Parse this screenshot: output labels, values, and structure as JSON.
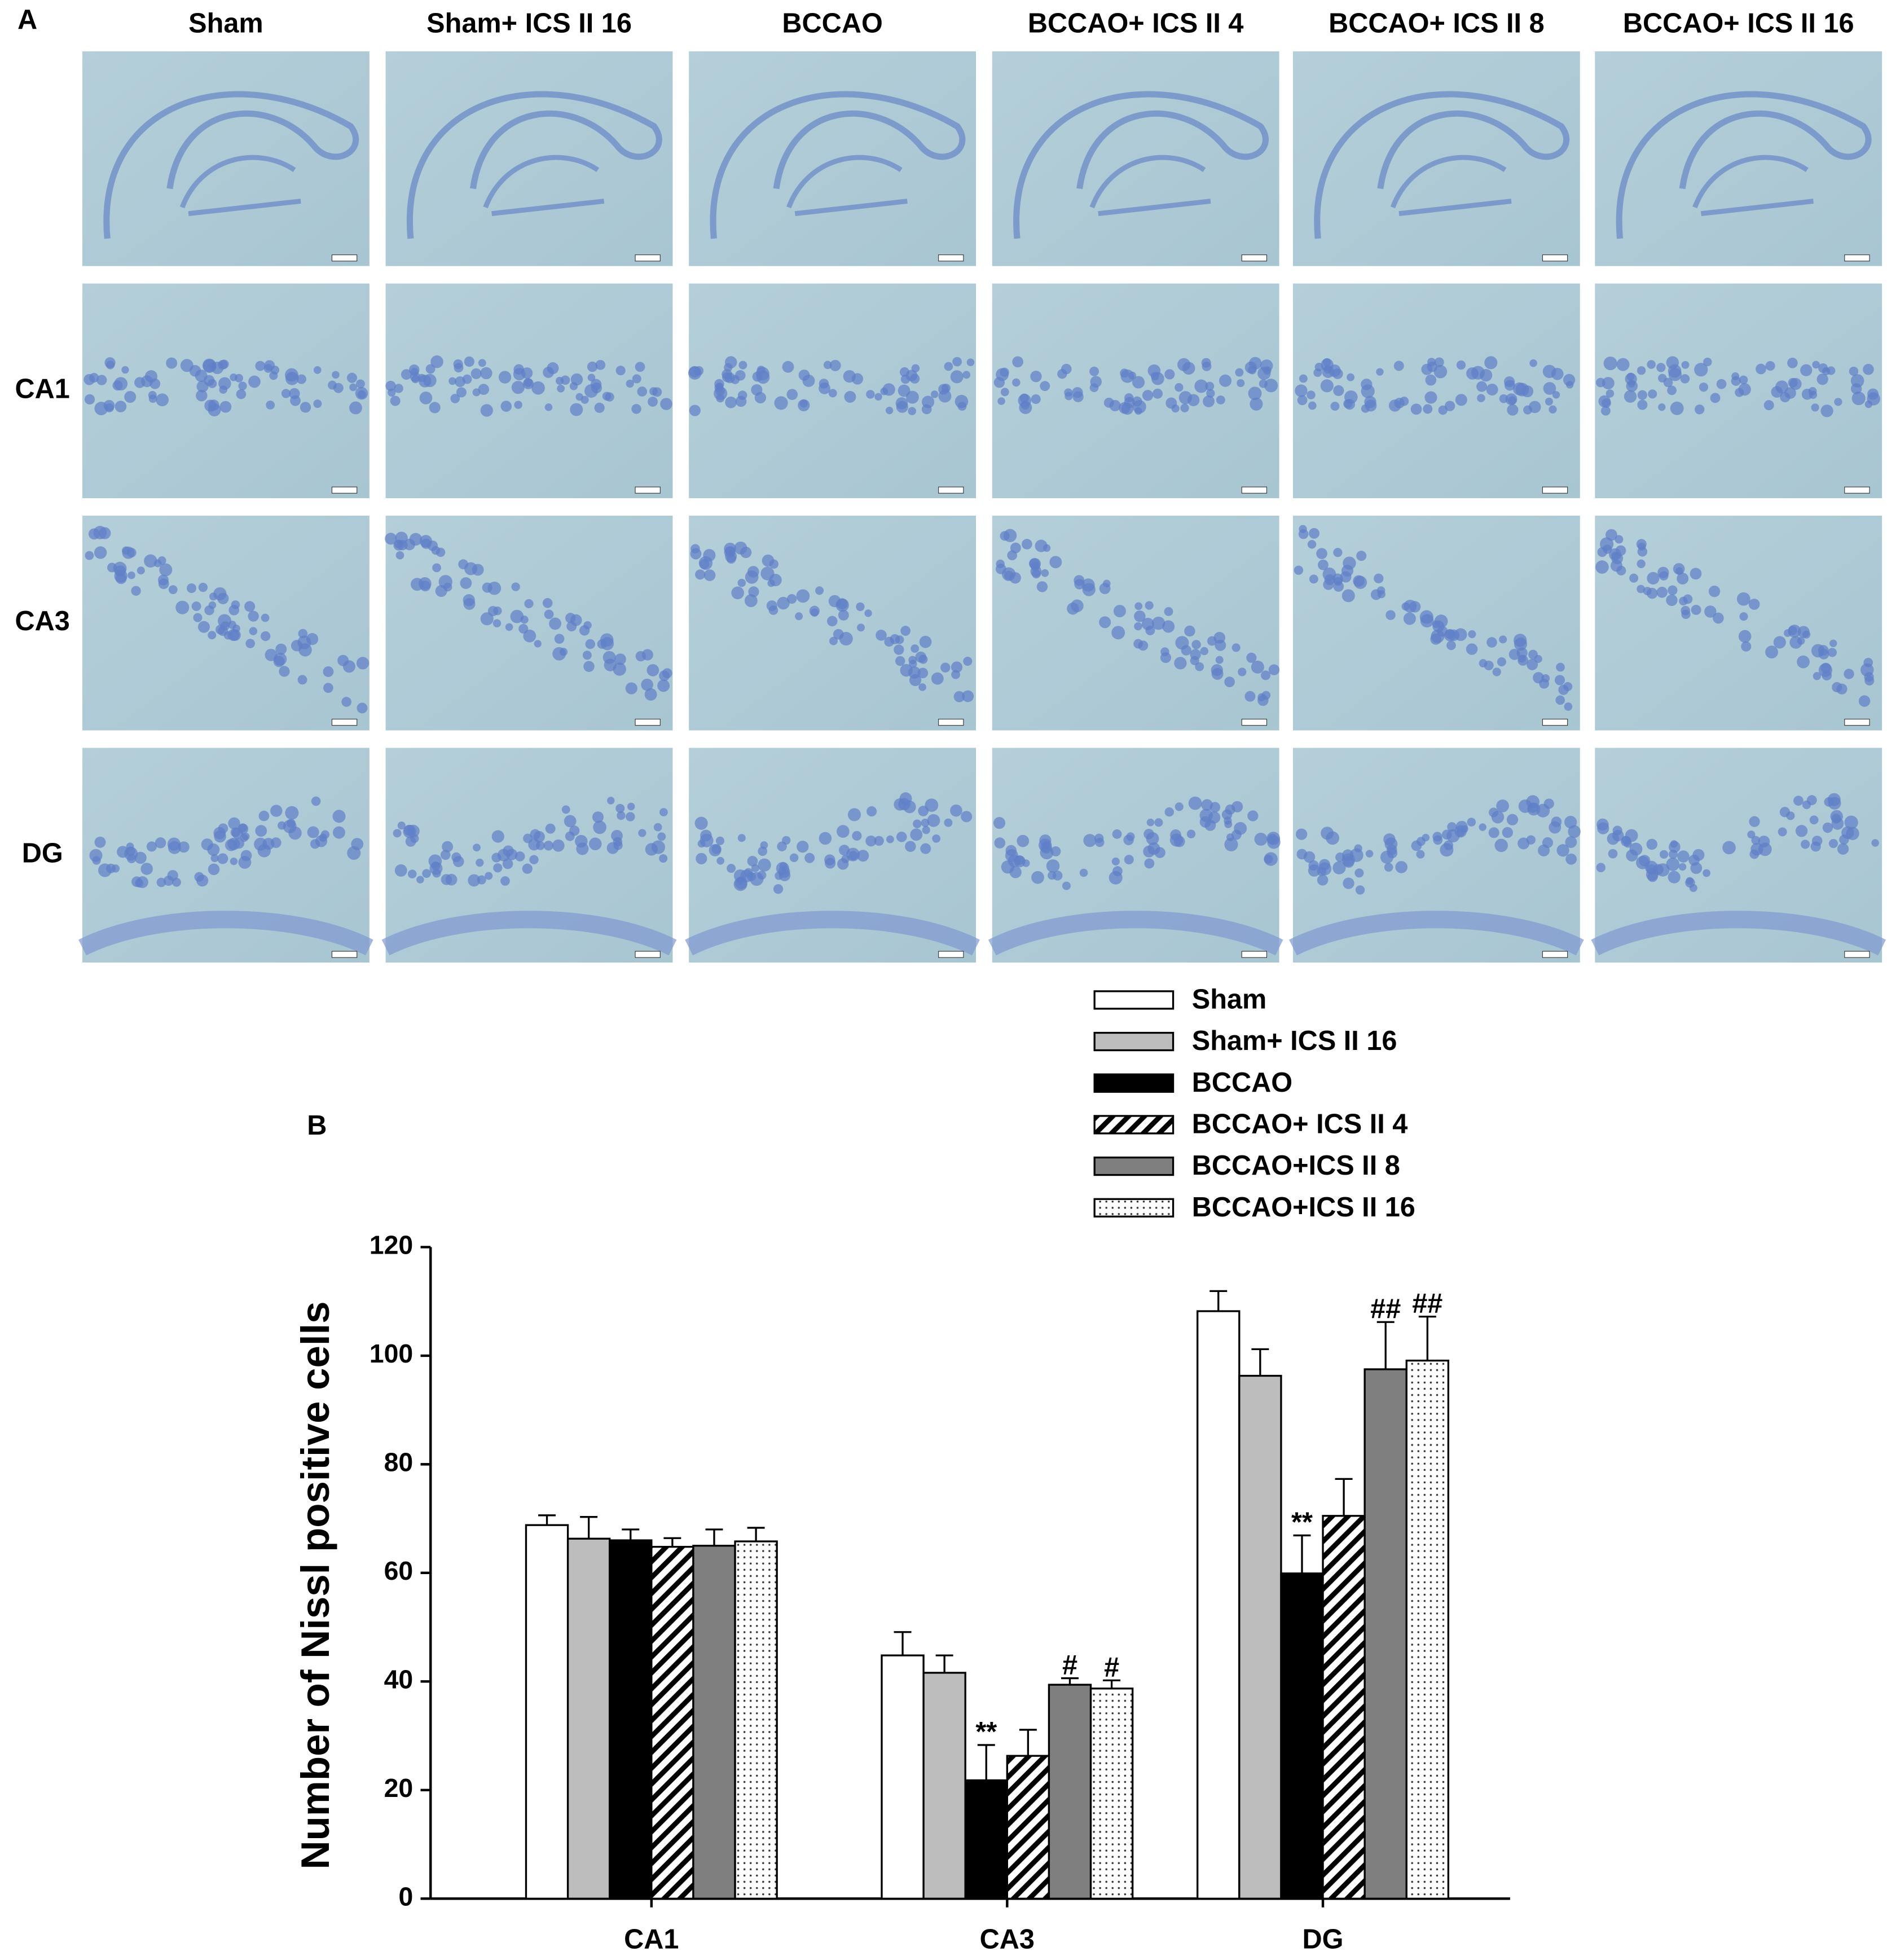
{
  "panel_labels": [
    "A",
    "B"
  ],
  "panel_a": {
    "columns": [
      "Sham",
      "Sham+ ICS II 16",
      "BCCAO",
      "BCCAO+ ICS II 4",
      "BCCAO+ ICS II 8",
      "BCCAO+ ICS II 16"
    ],
    "rows": [
      "CA1",
      "CA3",
      "DG"
    ]
  },
  "chart_data": {
    "type": "bar",
    "y_label": "Number of Nissl positive cells",
    "categories": [
      "CA1",
      "CA3",
      "DG"
    ],
    "ylim": [
      0,
      120
    ],
    "yticks": [
      0,
      20,
      40,
      60,
      80,
      100,
      120
    ],
    "legend": "top-right",
    "series": [
      {
        "name": "Sham",
        "color": "#ffffff",
        "pattern": "solid",
        "values": [
          68.8,
          44.8,
          108.2
        ],
        "errors": [
          1.8,
          4.3,
          3.7
        ],
        "annotations": [
          null,
          null,
          null
        ]
      },
      {
        "name": "Sham+ ICS II 16",
        "color": "#bdbdbd",
        "pattern": "solid",
        "values": [
          66.3,
          41.6,
          96.3
        ],
        "errors": [
          4.0,
          3.2,
          4.9
        ],
        "annotations": [
          null,
          null,
          null
        ]
      },
      {
        "name": "BCCAO",
        "color": "#000000",
        "pattern": "solid",
        "values": [
          66.0,
          21.8,
          59.9
        ],
        "errors": [
          2.0,
          6.5,
          7.0
        ],
        "annotations": [
          null,
          "**",
          "**"
        ]
      },
      {
        "name": "BCCAO+ ICS II 4",
        "color": "#000000",
        "pattern": "hatch",
        "values": [
          64.8,
          26.3,
          70.5
        ],
        "errors": [
          1.6,
          4.8,
          6.8
        ],
        "annotations": [
          null,
          null,
          null
        ]
      },
      {
        "name": "BCCAO+ICS II 8",
        "color": "#7f7f7f",
        "pattern": "solid",
        "values": [
          65.0,
          39.4,
          97.5
        ],
        "errors": [
          3.0,
          1.2,
          8.7
        ],
        "annotations": [
          null,
          "#",
          "##"
        ]
      },
      {
        "name": "BCCAO+ICS II 16",
        "color": "#000000",
        "pattern": "dots",
        "values": [
          65.8,
          38.7,
          99.1
        ],
        "errors": [
          2.5,
          1.5,
          8.1
        ],
        "annotations": [
          null,
          "#",
          "##"
        ]
      }
    ]
  }
}
